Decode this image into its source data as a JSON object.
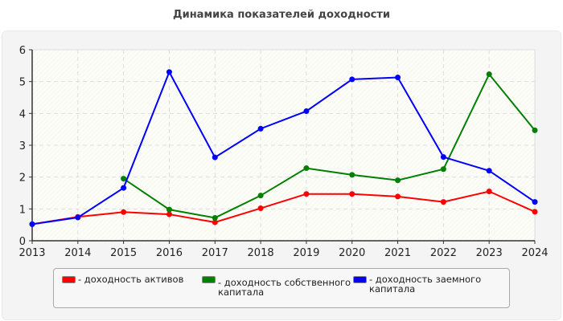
{
  "chart_data": {
    "type": "line",
    "title": "Динамика показателей доходности",
    "xlabel": "",
    "ylabel": "",
    "x": [
      2013,
      2014,
      2015,
      2016,
      2017,
      2018,
      2019,
      2020,
      2021,
      2022,
      2023,
      2024
    ],
    "xlim": [
      2013,
      2024
    ],
    "ylim": [
      0,
      6
    ],
    "yticks": [
      0,
      1,
      2,
      3,
      4,
      5,
      6
    ],
    "grid": true,
    "legend_position": "bottom",
    "series": [
      {
        "name": "- доходность активов",
        "color": "#ff0000",
        "values": [
          0.52,
          0.75,
          0.9,
          0.83,
          0.58,
          1.02,
          1.47,
          1.47,
          1.39,
          1.22,
          1.55,
          0.91
        ]
      },
      {
        "name": "- доходность собственного капитала",
        "color": "#008000",
        "values": [
          null,
          null,
          1.95,
          0.98,
          0.72,
          1.42,
          2.28,
          2.07,
          1.9,
          2.25,
          5.23,
          3.47
        ]
      },
      {
        "name": "- доходность заемного капитала",
        "color": "#0000ff",
        "values": [
          0.52,
          0.73,
          1.66,
          5.3,
          2.62,
          3.52,
          4.07,
          5.07,
          5.13,
          2.63,
          2.2,
          1.22
        ]
      }
    ]
  }
}
